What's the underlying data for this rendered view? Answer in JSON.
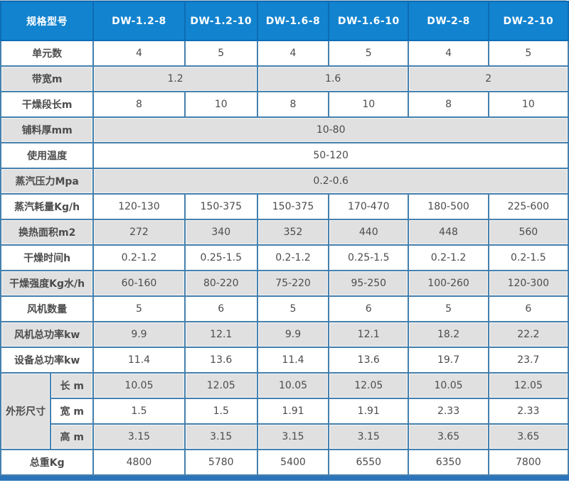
{
  "colors": {
    "header_bg": "#1283cf",
    "header_border": "#0d6cb4",
    "grid_border": "#4580ad",
    "outer_border": "#2a6396",
    "shade_row_bg": "#e0e0e0",
    "row_bg": "#ffffff",
    "header_text": "#ffffff",
    "cell_text": "#4c4c4c",
    "bottom_bar": "#2d74ba"
  },
  "table": {
    "corner_label": "规格型号",
    "models": [
      "DW-1.2-8",
      "DW-1.2-10",
      "DW-1.6-8",
      "DW-1.6-10",
      "DW-2-8",
      "DW-2-10"
    ],
    "dimension_group_label": "外形尺寸",
    "rows": [
      {
        "label": "单元数",
        "shade": false,
        "cells": [
          {
            "text": "4"
          },
          {
            "text": "5"
          },
          {
            "text": "4"
          },
          {
            "text": "5"
          },
          {
            "text": "4"
          },
          {
            "text": "5"
          }
        ]
      },
      {
        "label": "带宽m",
        "shade": true,
        "cells": [
          {
            "text": "1.2",
            "span": 2
          },
          {
            "text": "1.6",
            "span": 2
          },
          {
            "text": "2",
            "span": 2
          }
        ]
      },
      {
        "label": "干燥段长m",
        "shade": false,
        "cells": [
          {
            "text": "8"
          },
          {
            "text": "10"
          },
          {
            "text": "8"
          },
          {
            "text": "10"
          },
          {
            "text": "8"
          },
          {
            "text": "10"
          }
        ]
      },
      {
        "label": "铺料厚mm",
        "shade": true,
        "cells": [
          {
            "text": "10-80",
            "span": 6
          }
        ]
      },
      {
        "label": "使用温度",
        "shade": false,
        "cells": [
          {
            "text": "50-120",
            "span": 6
          }
        ]
      },
      {
        "label": "蒸汽压力Mpa",
        "shade": true,
        "cells": [
          {
            "text": "0.2-0.6",
            "span": 6
          }
        ]
      },
      {
        "label": "蒸汽耗量Kg/h",
        "shade": false,
        "cells": [
          {
            "text": "120-130"
          },
          {
            "text": "150-375"
          },
          {
            "text": "150-375"
          },
          {
            "text": "170-470"
          },
          {
            "text": "180-500"
          },
          {
            "text": "225-600"
          }
        ]
      },
      {
        "label": "换热面积m2",
        "shade": true,
        "cells": [
          {
            "text": "272"
          },
          {
            "text": "340"
          },
          {
            "text": "352"
          },
          {
            "text": "440"
          },
          {
            "text": "448"
          },
          {
            "text": "560"
          }
        ]
      },
      {
        "label": "干燥时间h",
        "shade": false,
        "cells": [
          {
            "text": "0.2-1.2"
          },
          {
            "text": "0.25-1.5"
          },
          {
            "text": "0.2-1.2"
          },
          {
            "text": "0.25-1.5"
          },
          {
            "text": "0.2-1.2"
          },
          {
            "text": "0.2-1.5"
          }
        ]
      },
      {
        "label": "干燥强度Kg水/h",
        "shade": true,
        "cells": [
          {
            "text": "60-160"
          },
          {
            "text": "80-220"
          },
          {
            "text": "75-220"
          },
          {
            "text": "95-250"
          },
          {
            "text": "100-260"
          },
          {
            "text": "120-300"
          }
        ]
      },
      {
        "label": "风机数量",
        "shade": false,
        "cells": [
          {
            "text": "5"
          },
          {
            "text": "6"
          },
          {
            "text": "5"
          },
          {
            "text": "6"
          },
          {
            "text": "5"
          },
          {
            "text": "6"
          }
        ]
      },
      {
        "label": "风机总功率kw",
        "shade": true,
        "cells": [
          {
            "text": "9.9"
          },
          {
            "text": "12.1"
          },
          {
            "text": "9.9"
          },
          {
            "text": "12.1"
          },
          {
            "text": "18.2"
          },
          {
            "text": "22.2"
          }
        ]
      },
      {
        "label": "设备总功率kw",
        "shade": false,
        "cells": [
          {
            "text": "11.4"
          },
          {
            "text": "13.6"
          },
          {
            "text": "11.4"
          },
          {
            "text": "13.6"
          },
          {
            "text": "19.7"
          },
          {
            "text": "23.7"
          }
        ]
      },
      {
        "group": "外形尺寸",
        "group_rowspan": 3,
        "sublabel": "长 m",
        "shade": true,
        "cells": [
          {
            "text": "10.05"
          },
          {
            "text": "12.05"
          },
          {
            "text": "10.05"
          },
          {
            "text": "12.05"
          },
          {
            "text": "10.05"
          },
          {
            "text": "12.05"
          }
        ]
      },
      {
        "sublabel": "宽 m",
        "shade": false,
        "cells": [
          {
            "text": "1.5"
          },
          {
            "text": "1.5"
          },
          {
            "text": "1.91"
          },
          {
            "text": "1.91"
          },
          {
            "text": "2.33"
          },
          {
            "text": "2.33"
          }
        ]
      },
      {
        "sublabel": "高 m",
        "shade": true,
        "cells": [
          {
            "text": "3.15"
          },
          {
            "text": "3.15"
          },
          {
            "text": "3.15"
          },
          {
            "text": "3.15"
          },
          {
            "text": "3.65"
          },
          {
            "text": "3.65"
          }
        ]
      },
      {
        "label": "总重Kg",
        "shade": false,
        "cells": [
          {
            "text": "4800"
          },
          {
            "text": "5780"
          },
          {
            "text": "5400"
          },
          {
            "text": "6550"
          },
          {
            "text": "6350"
          },
          {
            "text": "7800"
          }
        ]
      }
    ]
  }
}
